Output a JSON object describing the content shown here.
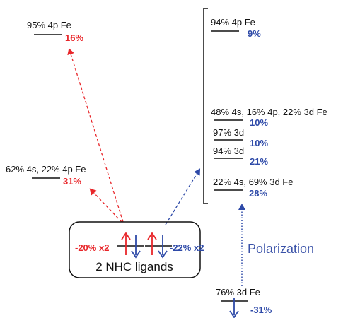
{
  "colors": {
    "red": "#e8262a",
    "blue": "#2e4aa8",
    "black": "#111111"
  },
  "left_levels": [
    {
      "label": "95% 4p Fe",
      "percent": "16%"
    },
    {
      "label": "62% 4s, 22% 4p Fe",
      "percent": "31%"
    }
  ],
  "right_levels": [
    {
      "label": "94% 4p Fe",
      "percent": "9%"
    },
    {
      "label": "48% 4s, 16% 4p, 22% 3d Fe",
      "percent": "10%"
    },
    {
      "label": "97% 3d",
      "percent": "10%"
    },
    {
      "label": "94% 3d",
      "percent": "21%"
    },
    {
      "label": "22% 4s, 69% 3d Fe",
      "percent": "28%"
    }
  ],
  "ligand_box": {
    "title": "2 NHC ligands",
    "left_percent": "-20% x2",
    "right_percent": "-22% x2"
  },
  "polarization_label": "Polarization",
  "bottom_level": {
    "label": "76% 3d Fe",
    "percent": "-31%"
  }
}
